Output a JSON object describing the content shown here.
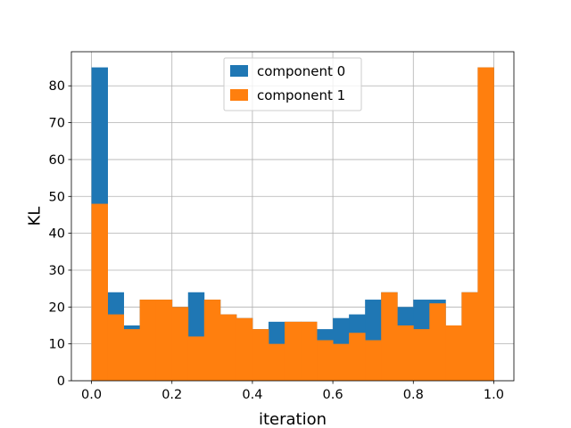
{
  "chart_data": {
    "type": "bar",
    "title": "",
    "xlabel": "iteration",
    "ylabel": "KL",
    "xlim": [
      -0.05,
      1.05
    ],
    "ylim": [
      0,
      89.25
    ],
    "grid": true,
    "legend_position": "top-center",
    "x_ticks": [
      "0.0",
      "0.2",
      "0.4",
      "0.6",
      "0.8",
      "1.0"
    ],
    "y_ticks": [
      "0",
      "10",
      "20",
      "30",
      "40",
      "50",
      "60",
      "70",
      "80"
    ],
    "bin_edges": [
      0.0,
      0.04,
      0.08,
      0.12,
      0.16,
      0.2,
      0.24,
      0.28,
      0.32,
      0.36,
      0.4,
      0.44,
      0.48,
      0.52,
      0.56,
      0.6,
      0.64,
      0.68,
      0.72,
      0.76,
      0.8,
      0.84,
      0.88,
      0.92,
      0.96,
      1.0
    ],
    "series": [
      {
        "name": "component 0",
        "color": "#1f77b4",
        "values": [
          85,
          24,
          15,
          22,
          22,
          20,
          24,
          22,
          18,
          17,
          14,
          16,
          16,
          16,
          14,
          17,
          18,
          22,
          24,
          20,
          22,
          22,
          15,
          24,
          85
        ]
      },
      {
        "name": "component 1",
        "color": "#ff7f0e",
        "values": [
          48,
          18,
          14,
          22,
          22,
          20,
          12,
          22,
          18,
          17,
          14,
          10,
          16,
          16,
          11,
          10,
          13,
          11,
          24,
          15,
          14,
          21,
          15,
          24,
          85
        ]
      }
    ]
  }
}
